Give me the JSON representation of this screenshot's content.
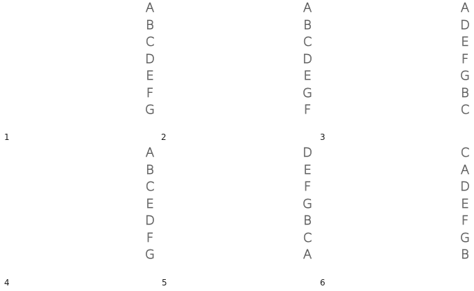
{
  "puzzles": [
    {
      "number": "1",
      "letters": [
        "A",
        "B",
        "C",
        "D",
        "E",
        "F",
        "G"
      ]
    },
    {
      "number": "2",
      "letters": [
        "A",
        "B",
        "C",
        "D",
        "E",
        "G",
        "F"
      ]
    },
    {
      "number": "3",
      "letters": [
        "A",
        "D",
        "E",
        "F",
        "G",
        "B",
        "C"
      ]
    },
    {
      "number": "4",
      "letters": [
        "A",
        "B",
        "C",
        "E",
        "D",
        "F",
        "G"
      ]
    },
    {
      "number": "5",
      "letters": [
        "D",
        "E",
        "F",
        "G",
        "B",
        "C",
        "A"
      ]
    },
    {
      "number": "6",
      "letters": [
        "C",
        "A",
        "D",
        "E",
        "F",
        "G",
        "B"
      ]
    }
  ]
}
